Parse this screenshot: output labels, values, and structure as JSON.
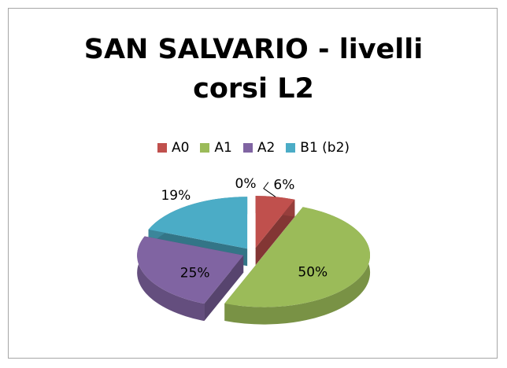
{
  "chart_data": {
    "type": "pie3d",
    "title": "SAN SALVARIO - livelli corsi L2",
    "categories": [
      "A0",
      "A1",
      "A2",
      "B1 (b2)",
      null
    ],
    "values": [
      6,
      50,
      25,
      19,
      0
    ],
    "value_labels": [
      "6%",
      "50%",
      "25%",
      "19%",
      "0%"
    ],
    "colors": [
      "#c0504d",
      "#9bbb59",
      "#8064a2",
      "#4bacc6",
      "#f79646"
    ],
    "legend": "top"
  }
}
